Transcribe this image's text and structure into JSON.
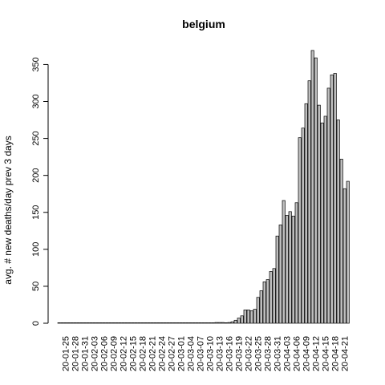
{
  "chart_data": {
    "type": "bar",
    "title": "belgium",
    "ylabel": "avg. # new deaths/day prev  3  days",
    "xlabel": "",
    "ylim": [
      0,
      380
    ],
    "yticks": [
      0,
      50,
      100,
      150,
      200,
      250,
      300,
      350
    ],
    "x_tick_labels": [
      "20-01-25",
      "20-01-28",
      "20-01-31",
      "20-02-03",
      "20-02-06",
      "20-02-09",
      "20-02-12",
      "20-02-15",
      "20-02-18",
      "20-02-21",
      "20-02-24",
      "20-02-27",
      "20-03-01",
      "20-03-04",
      "20-03-07",
      "20-03-10",
      "20-03-13",
      "20-03-16",
      "20-03-19",
      "20-03-22",
      "20-03-25",
      "20-03-28",
      "20-03-31",
      "20-04-03",
      "20-04-06",
      "20-04-09",
      "20-04-12",
      "20-04-15",
      "20-04-18",
      "20-04-21"
    ],
    "categories": [
      "20-01-23",
      "20-01-24",
      "20-01-25",
      "20-01-26",
      "20-01-27",
      "20-01-28",
      "20-01-29",
      "20-01-30",
      "20-01-31",
      "20-02-01",
      "20-02-02",
      "20-02-03",
      "20-02-04",
      "20-02-05",
      "20-02-06",
      "20-02-07",
      "20-02-08",
      "20-02-09",
      "20-02-10",
      "20-02-11",
      "20-02-12",
      "20-02-13",
      "20-02-14",
      "20-02-15",
      "20-02-16",
      "20-02-17",
      "20-02-18",
      "20-02-19",
      "20-02-20",
      "20-02-21",
      "20-02-22",
      "20-02-23",
      "20-02-24",
      "20-02-25",
      "20-02-26",
      "20-02-27",
      "20-02-28",
      "20-02-29",
      "20-03-01",
      "20-03-02",
      "20-03-03",
      "20-03-04",
      "20-03-05",
      "20-03-06",
      "20-03-07",
      "20-03-08",
      "20-03-09",
      "20-03-10",
      "20-03-11",
      "20-03-12",
      "20-03-13",
      "20-03-14",
      "20-03-15",
      "20-03-16",
      "20-03-17",
      "20-03-18",
      "20-03-19",
      "20-03-20",
      "20-03-21",
      "20-03-22",
      "20-03-23",
      "20-03-24",
      "20-03-25",
      "20-03-26",
      "20-03-27",
      "20-03-28",
      "20-03-29",
      "20-03-30",
      "20-03-31",
      "20-04-01",
      "20-04-02",
      "20-04-03",
      "20-04-04",
      "20-04-05",
      "20-04-06",
      "20-04-07",
      "20-04-08",
      "20-04-09",
      "20-04-10",
      "20-04-11",
      "20-04-12",
      "20-04-13",
      "20-04-14",
      "20-04-15",
      "20-04-16",
      "20-04-17",
      "20-04-18",
      "20-04-19",
      "20-04-20",
      "20-04-21",
      "20-04-22"
    ],
    "values": [
      0,
      0,
      0,
      0,
      0,
      0,
      0,
      0,
      0,
      0,
      0,
      0,
      0,
      0,
      0,
      0,
      0,
      0,
      0,
      0,
      0,
      0,
      0,
      0,
      0,
      0,
      0,
      0,
      0,
      0,
      0,
      0,
      0,
      0,
      0,
      0,
      0,
      0,
      0,
      0,
      0,
      0,
      0,
      0,
      0,
      0,
      0,
      0,
      0.3,
      1,
      1,
      1,
      0.7,
      1,
      2,
      4,
      7,
      10,
      18,
      18,
      17,
      19,
      35,
      44,
      56,
      59,
      70,
      74,
      118,
      133,
      166,
      146,
      151,
      145,
      163,
      251,
      264,
      297,
      328,
      369,
      359,
      295,
      271,
      280,
      318,
      336,
      338,
      275,
      222,
      182,
      192
    ],
    "colors": {
      "bar_fill": "#bebebe",
      "bar_stroke": "#000000"
    },
    "grid": false
  }
}
